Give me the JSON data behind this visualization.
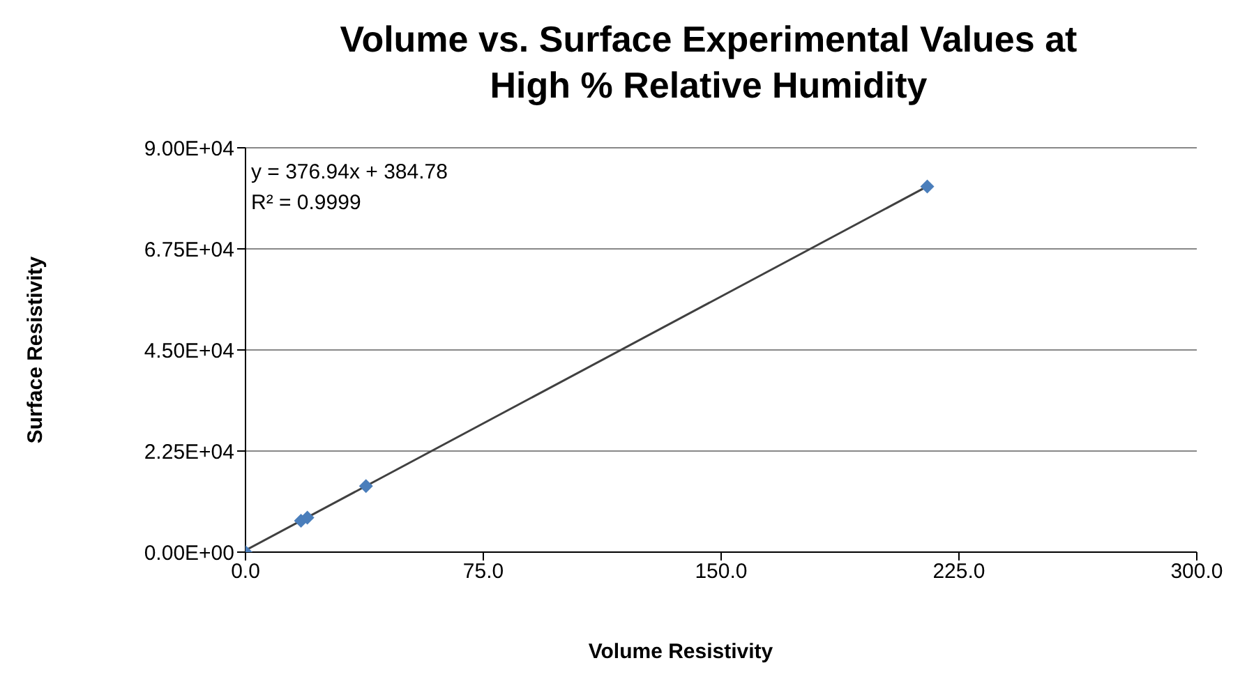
{
  "chart_data": {
    "type": "scatter",
    "title": "Volume vs. Surface Experimental Values at High % Relative Humidity",
    "xlabel": "Volume Resistivity",
    "ylabel": "Surface Resistivity",
    "annotations": [
      "y = 376.94x + 384.78",
      "R² = 0.9999"
    ],
    "xlim": [
      0,
      300
    ],
    "xticks": [
      {
        "value": 0,
        "label": "0.0"
      },
      {
        "value": 75,
        "label": "75.0"
      },
      {
        "value": 150,
        "label": "150.0"
      },
      {
        "value": 225,
        "label": "225.0"
      },
      {
        "value": 300,
        "label": "300.0"
      }
    ],
    "ylim": [
      0,
      90000
    ],
    "yticks": [
      {
        "value": 0,
        "label": "0.00E+00"
      },
      {
        "value": 22500,
        "label": "2.25E+04"
      },
      {
        "value": 45000,
        "label": "4.50E+04"
      },
      {
        "value": 67500,
        "label": "6.75E+04"
      },
      {
        "value": 90000,
        "label": "9.00E+04"
      }
    ],
    "grid": "y",
    "legend": false,
    "series": [
      {
        "color": "#4a7ebb",
        "marker": "diamond",
        "x": [
          0,
          17.5,
          19.5,
          38,
          215
        ],
        "values": [
          0,
          7000,
          7700,
          14700,
          81400
        ]
      },
      {
        "type": "line",
        "color": "#404040",
        "x": [
          0,
          215
        ],
        "values": [
          400,
          81400
        ]
      }
    ]
  }
}
